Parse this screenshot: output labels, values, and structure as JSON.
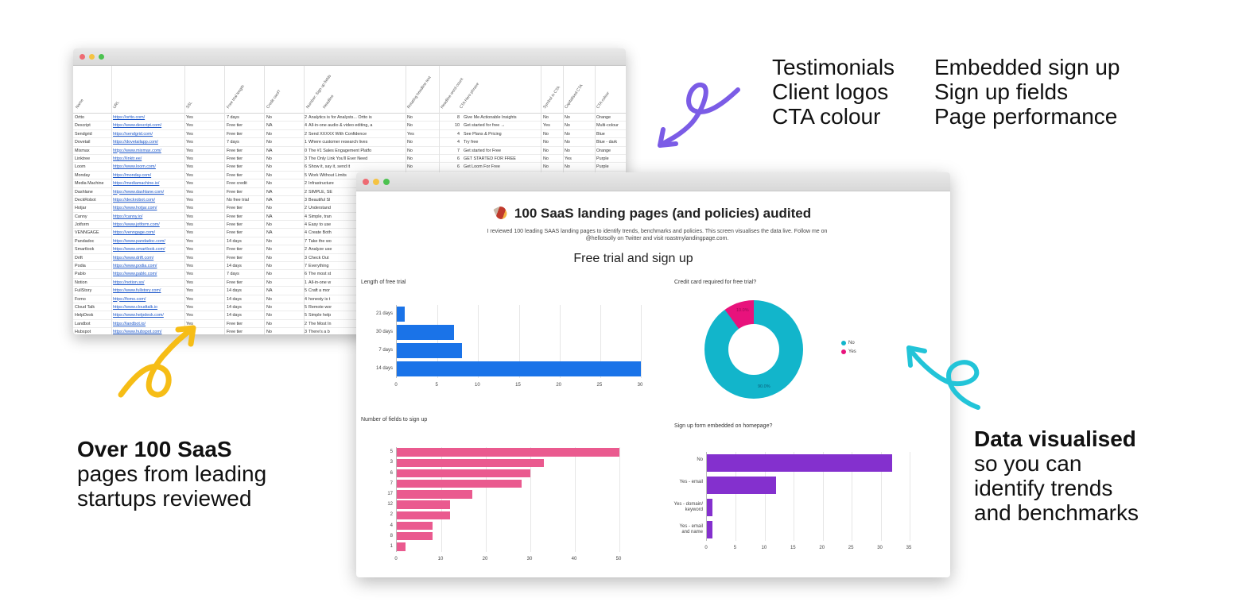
{
  "features": {
    "col1": [
      "Testimonials",
      "Client logos",
      "CTA colour"
    ],
    "col2": [
      "Embedded sign up",
      "Sign up fields",
      "Page performance"
    ]
  },
  "callouts": {
    "left": {
      "bold": "Over 100 SaaS",
      "lines": [
        "pages from leading",
        "startups reviewed"
      ]
    },
    "right": {
      "bold": "Data visualised",
      "lines": [
        "so you can",
        "identify trends",
        "and benchmarks"
      ]
    }
  },
  "colors": {
    "purple_arrow": "#7b5ce6",
    "yellow_arrow": "#f6bd16",
    "cyan_arrow": "#22c4d8",
    "bar_blue": "#1a73e8",
    "bar_pink": "#ea5a8f",
    "bar_purple": "#8430ce",
    "donut_no": "#12b5cb",
    "donut_yes": "#e8127c"
  },
  "spreadsheet": {
    "headers": [
      "Name",
      "URL",
      "SSL",
      "Free trial length",
      "Credit card?",
      "Number: Sign up fields",
      "Headline",
      "Rotating headline text",
      "Headline word count",
      "CTA Hero phrase",
      "Symbol in CTA",
      "Capitalised CTA",
      "CTA colour"
    ],
    "rows": [
      [
        "Ortto",
        "https://ortto.com/",
        "Yes",
        "7 days",
        "No",
        "2",
        "Analytics is for Analysts... Ortto is",
        "No",
        "",
        "8",
        "Give Me Actionable Insights",
        "No",
        "No",
        "Orange"
      ],
      [
        "Descript",
        "https://www.descript.com/",
        "Yes",
        "Free tier",
        "NA",
        "4",
        "All-in-one audio & video editing, a",
        "No",
        "",
        "10",
        "Get started for free →",
        "Yes",
        "No",
        "Multi-colour"
      ],
      [
        "Sendgrid",
        "https://sendgrid.com/",
        "Yes",
        "Free tier",
        "No",
        "2",
        "Send XXXXX With Confidence",
        "Yes",
        "",
        "4",
        "See Plans & Pricing",
        "No",
        "No",
        "Blue"
      ],
      [
        "Dovetail",
        "https://dovetailapp.com/",
        "Yes",
        "7 days",
        "No",
        "1",
        "Where customer research lives",
        "No",
        "",
        "4",
        "Try free",
        "No",
        "No",
        "Blue - dark"
      ],
      [
        "Mixmax",
        "https://www.mixmax.com/",
        "Yes",
        "Free tier",
        "NA",
        "0",
        "The #1 Sales Engagement Platfo",
        "No",
        "",
        "7",
        "Get started for Free",
        "No",
        "No",
        "Orange"
      ],
      [
        "Linktree",
        "https://linktr.ee/",
        "Yes",
        "Free tier",
        "No",
        "3",
        "The Only Link You'll Ever Need",
        "No",
        "",
        "6",
        "GET STARTED FOR FREE",
        "No",
        "Yes",
        "Purple"
      ],
      [
        "Loom",
        "https://www.loom.com/",
        "Yes",
        "Free tier",
        "No",
        "6",
        "Show it, say it, send it",
        "No",
        "",
        "6",
        "Get Loom For Free",
        "No",
        "No",
        "Purple"
      ],
      [
        "Monday",
        "https://monday.com/",
        "Yes",
        "Free tier",
        "No",
        "5",
        "Work Without Limits",
        "",
        "",
        "",
        "",
        "",
        "",
        ""
      ],
      [
        "Media Machine",
        "https://mediamachine.io/",
        "Yes",
        "Free credit",
        "No",
        "2",
        "Infrastructure",
        "",
        "",
        "",
        "",
        "",
        "",
        ""
      ],
      [
        "Dashlane",
        "https://www.dashlane.com/",
        "Yes",
        "Free tier",
        "NA",
        "2",
        "SIMPLE, SE",
        "",
        "",
        "",
        "",
        "",
        "",
        ""
      ],
      [
        "DeckRobot",
        "https://deckrobot.com/",
        "Yes",
        "No free trial",
        "NA",
        "3",
        "Beautiful Sl",
        "",
        "",
        "",
        "",
        "",
        "",
        ""
      ],
      [
        "Hotjar",
        "https://www.hotjar.com/",
        "Yes",
        "Free tier",
        "No",
        "2",
        "Understand",
        "",
        "",
        "",
        "",
        "",
        "",
        ""
      ],
      [
        "Canny",
        "https://canny.io/",
        "Yes",
        "Free tier",
        "NA",
        "4",
        "Simple, tran",
        "",
        "",
        "",
        "",
        "",
        "",
        ""
      ],
      [
        "Jotform",
        "https://www.jotform.com/",
        "Yes",
        "Free tier",
        "No",
        "4",
        "Easy to use",
        "",
        "",
        "",
        "",
        "",
        "",
        ""
      ],
      [
        "VENNGAGE",
        "https://venngage.com/",
        "Yes",
        "Free tier",
        "NA",
        "4",
        "Create Both",
        "",
        "",
        "",
        "",
        "",
        "",
        ""
      ],
      [
        "Pandadoc",
        "https://www.pandadoc.com/",
        "Yes",
        "14 days",
        "No",
        "7",
        "Take the wo",
        "",
        "",
        "",
        "",
        "",
        "",
        ""
      ],
      [
        "Smartlook",
        "https://www.smartlook.com/",
        "Yes",
        "Free tier",
        "No",
        "2",
        "Analyze use",
        "",
        "",
        "",
        "",
        "",
        "",
        ""
      ],
      [
        "Drift",
        "https://www.drift.com/",
        "Yes",
        "Free tier",
        "No",
        "3",
        "Check Out",
        "",
        "",
        "",
        "",
        "",
        "",
        ""
      ],
      [
        "Podia",
        "https://www.podia.com/",
        "Yes",
        "14 days",
        "No",
        "7",
        "Everything",
        "",
        "",
        "",
        "",
        "",
        "",
        ""
      ],
      [
        "Pablo",
        "https://www.pablo.com/",
        "Yes",
        "7 days",
        "No",
        "6",
        "The most st",
        "",
        "",
        "",
        "",
        "",
        "",
        ""
      ],
      [
        "Notion",
        "https://notion.so/",
        "Yes",
        "Free tier",
        "No",
        "1",
        "All-in-one w",
        "",
        "",
        "",
        "",
        "",
        "",
        ""
      ],
      [
        "FullStory",
        "https://www.fullstory.com/",
        "Yes",
        "14 days",
        "NA",
        "5",
        "Craft a mor",
        "",
        "",
        "",
        "",
        "",
        "",
        ""
      ],
      [
        "Fomo",
        "https://fomo.com/",
        "Yes",
        "14 days",
        "No",
        "4",
        "honesty is t",
        "",
        "",
        "",
        "",
        "",
        "",
        ""
      ],
      [
        "Cloud Talk",
        "https://www.cloudtalk.io",
        "Yes",
        "14 days",
        "No",
        "5",
        "Remote wor",
        "",
        "",
        "",
        "",
        "",
        "",
        ""
      ],
      [
        "HelpDesk",
        "https://www.helpdesk.com/",
        "Yes",
        "14 days",
        "No",
        "5",
        "Simple help",
        "",
        "",
        "",
        "",
        "",
        "",
        ""
      ],
      [
        "Landbot",
        "https://landbot.io/",
        "Yes",
        "Free tier",
        "No",
        "2",
        "The Most In",
        "",
        "",
        "",
        "",
        "",
        "",
        ""
      ],
      [
        "Hubspot",
        "https://www.hubspot.com/",
        "Yes",
        "Free tier",
        "No",
        "3",
        "There's a b",
        "",
        "",
        "",
        "",
        "",
        "",
        ""
      ]
    ]
  },
  "dashboard": {
    "title": "100 SaaS landing pages (and policies) audited",
    "subtitle": "I reviewed 100 leading SAAS landing pages to identify trends, benchmarks and policies. This screen visualises the data live. Follow me on @hellotsolly on Twitter and visit roastmylandingpage.com.",
    "section": "Free trial and sign up"
  },
  "chart_data": [
    {
      "type": "bar",
      "orientation": "horizontal",
      "title": "Length of free trial",
      "categories": [
        "21 days",
        "30 days",
        "7 days",
        "14 days"
      ],
      "values": [
        1,
        7,
        8,
        30
      ],
      "xlim": [
        0,
        30
      ],
      "xticks": [
        0,
        5,
        10,
        15,
        20,
        25,
        30
      ],
      "grid": true,
      "color": "#1a73e8"
    },
    {
      "type": "pie",
      "donut": true,
      "title": "Credit card required for free trial?",
      "categories": [
        "No",
        "Yes"
      ],
      "values": [
        90,
        10
      ],
      "labels": [
        "90.0%",
        "10.0%"
      ],
      "legend_position": "right",
      "colors": [
        "#12b5cb",
        "#e8127c"
      ]
    },
    {
      "type": "bar",
      "orientation": "horizontal",
      "title": "Number of fields to sign up",
      "categories": [
        "5",
        "3",
        "6",
        "7",
        "17",
        "12",
        "2",
        "4",
        "8",
        "1"
      ],
      "values": [
        50,
        33,
        30,
        28,
        17,
        12,
        12,
        8,
        8,
        2
      ],
      "xlim": [
        0,
        50
      ],
      "xticks": [
        0,
        10,
        20,
        30,
        40,
        50
      ],
      "grid": true,
      "color": "#ea5a8f"
    },
    {
      "type": "bar",
      "orientation": "horizontal",
      "title": "Sign up form embedded on homepage?",
      "categories": [
        "No",
        "Yes - email",
        "Yes - domain/ keyword",
        "Yes - email and name"
      ],
      "values": [
        32,
        12,
        1,
        1
      ],
      "xlim": [
        0,
        35
      ],
      "xticks": [
        0,
        5,
        10,
        15,
        20,
        25,
        30,
        35
      ],
      "grid": true,
      "color": "#8430ce"
    }
  ]
}
